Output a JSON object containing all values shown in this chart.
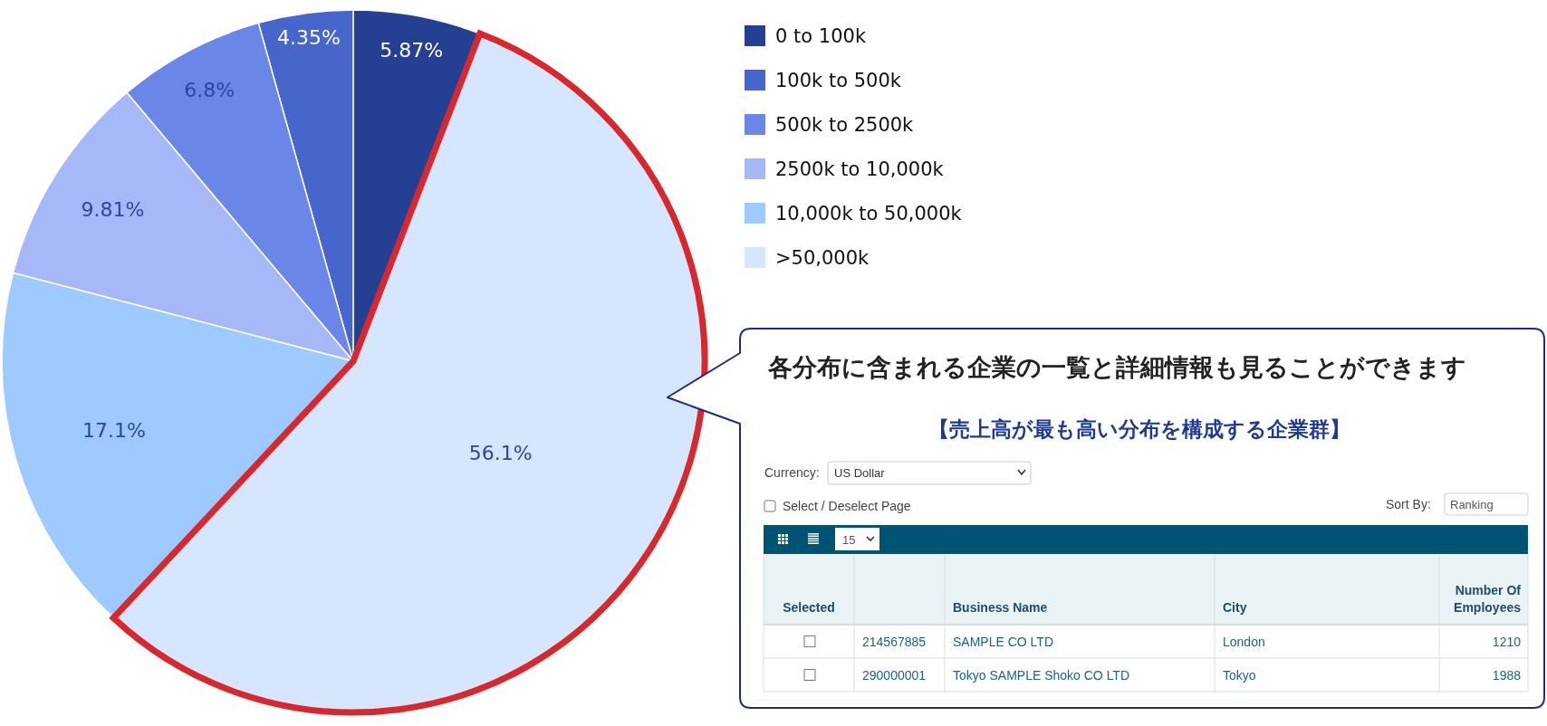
{
  "chart_data": {
    "type": "pie",
    "categories": [
      "0 to 100k",
      "100k to 500k",
      "500k to 2500k",
      "2500k to 10,000k",
      "10,000k to 50,000k",
      ">50,000k"
    ],
    "values": [
      5.87,
      4.35,
      6.8,
      9.81,
      17.1,
      56.1
    ],
    "colors": [
      "#253f92",
      "#4666cc",
      "#6a87e8",
      "#a6b8f8",
      "#9ecaff",
      "#d6e6fe"
    ],
    "value_labels": [
      "5.87%",
      "4.35%",
      "6.8%",
      "9.81%",
      "17.1%",
      "56.1%"
    ],
    "legend": "top right",
    "annotations": [
      {
        "text": "各分布に含まれる企業の一覧と詳細情報も見ることができます",
        "x": ">50,000k"
      },
      "【売上高が最も高い分布を構成する企業群】",
      "Currency:",
      "US Dollar",
      "Select / Deselect Page",
      "Sort By:",
      "Ranking",
      "15",
      "Selected",
      "Business Name",
      "City",
      "Number Of Employees",
      "214567885",
      "SAMPLE CO LTD",
      "London",
      "1210",
      "290000001",
      "Tokyo SAMPLE Shoko CO LTD",
      "Tokyo",
      "1988"
    ]
  }
}
